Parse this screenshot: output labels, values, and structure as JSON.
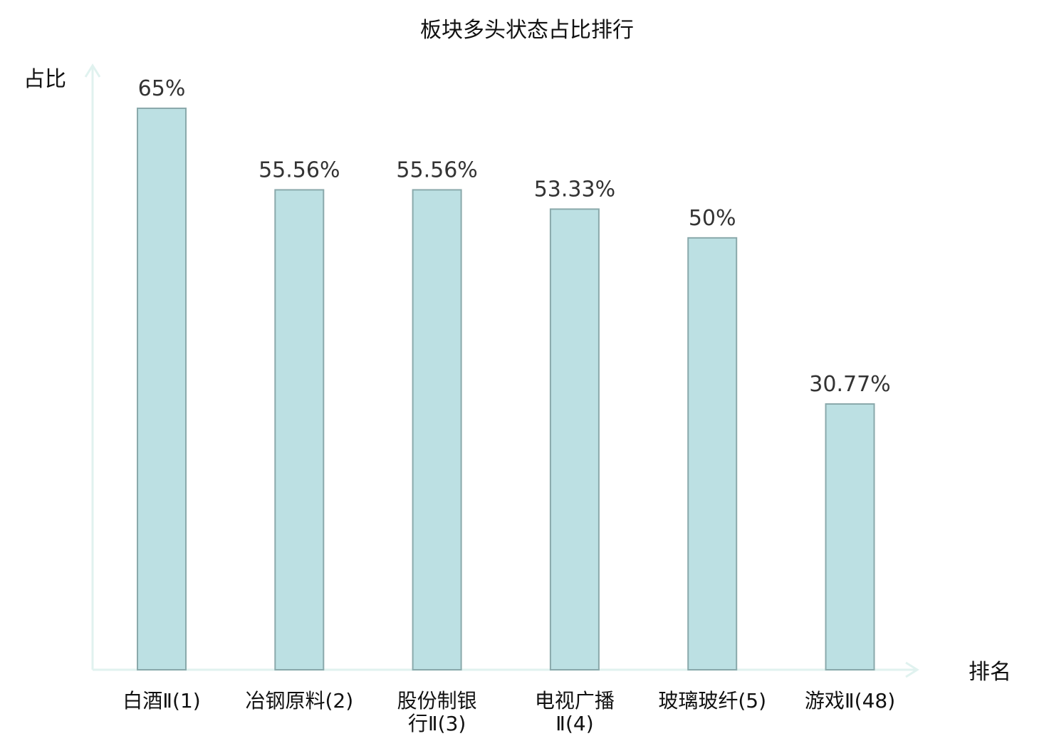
{
  "chart_data": {
    "type": "bar",
    "title": "板块多头状态占比排行",
    "ylabel": "占比",
    "xlabel": "排名",
    "categories": [
      [
        "白酒Ⅱ(1)"
      ],
      [
        "冶钢原料(2)"
      ],
      [
        "股份制银",
        "行Ⅱ(3)"
      ],
      [
        "电视广播",
        "Ⅱ(4)"
      ],
      [
        "玻璃玻纤(5)"
      ],
      [
        "游戏Ⅱ(48)"
      ]
    ],
    "values": [
      65,
      55.56,
      55.56,
      53.33,
      50,
      30.77
    ],
    "value_labels": [
      "65%",
      "55.56%",
      "55.56%",
      "53.33%",
      "50%",
      "30.77%"
    ],
    "ylim": [
      0,
      70
    ],
    "grid": false,
    "colors": {
      "bar_fill": "#bce0e3",
      "bar_stroke": "#8aa9ab",
      "axis": "#e0f2ef",
      "highlight": "#dd0000",
      "text": "#111111"
    },
    "highlight_index": 5
  }
}
